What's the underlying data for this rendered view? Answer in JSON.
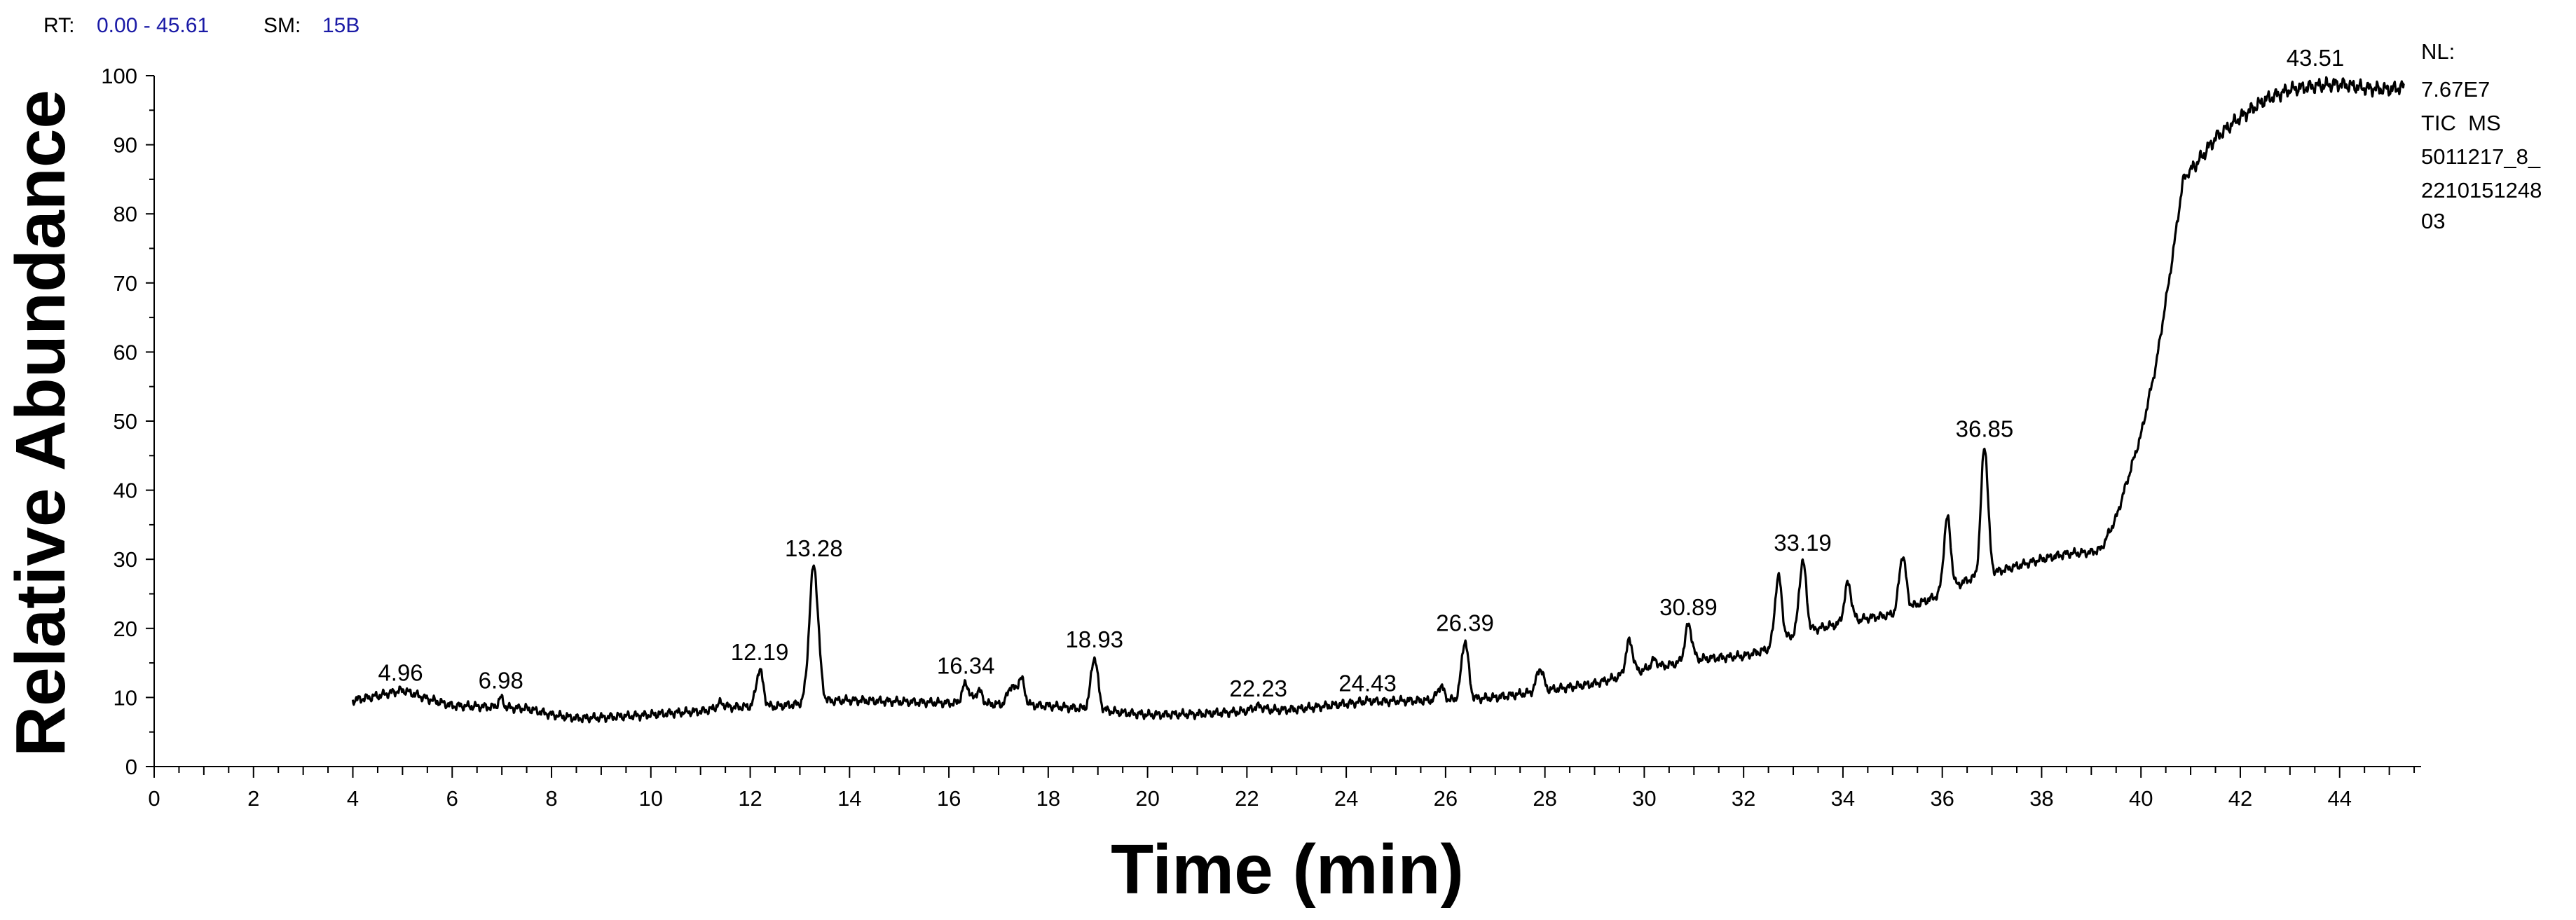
{
  "header": {
    "rt_key": "RT:",
    "rt_value": "0.00 - 45.61",
    "sm_key": "SM:",
    "sm_value": "15B"
  },
  "side_notes": [
    "NL:",
    "7.67E7",
    "TIC  MS",
    "5011217_8_",
    "2210151248",
    "03"
  ],
  "colors": {
    "trace": "#000000",
    "header_value": "#1a1aa6"
  },
  "chart_data": {
    "type": "line",
    "xlabel": "Time (min)",
    "ylabel": "Relative Abundance",
    "xlim": [
      0,
      45.61
    ],
    "ylim": [
      0,
      100
    ],
    "x_ticks": [
      0,
      2,
      4,
      6,
      8,
      10,
      12,
      14,
      16,
      18,
      20,
      22,
      24,
      26,
      28,
      30,
      32,
      34,
      36,
      38,
      40,
      42,
      44
    ],
    "y_ticks": [
      0,
      10,
      20,
      30,
      40,
      50,
      60,
      70,
      80,
      90,
      100
    ],
    "grid": false,
    "baseline": [
      [
        4.0,
        9.6
      ],
      [
        4.5,
        10.2
      ],
      [
        5.0,
        11.0
      ],
      [
        5.5,
        9.8
      ],
      [
        6.0,
        8.8
      ],
      [
        6.5,
        8.7
      ],
      [
        7.5,
        8.4
      ],
      [
        8.0,
        7.5
      ],
      [
        8.5,
        7.0
      ],
      [
        9.0,
        7.1
      ],
      [
        9.5,
        7.3
      ],
      [
        10.0,
        7.5
      ],
      [
        10.5,
        7.8
      ],
      [
        11.0,
        8.0
      ],
      [
        11.5,
        8.6
      ],
      [
        12.5,
        8.7
      ],
      [
        13.6,
        9.5
      ],
      [
        14.0,
        9.6
      ],
      [
        14.5,
        9.5
      ],
      [
        15.0,
        9.4
      ],
      [
        16.0,
        9.2
      ],
      [
        17.0,
        9.0
      ],
      [
        18.0,
        8.8
      ],
      [
        18.5,
        8.5
      ],
      [
        19.0,
        8.3
      ],
      [
        19.5,
        7.8
      ],
      [
        20.0,
        7.5
      ],
      [
        21.0,
        7.6
      ],
      [
        22.0,
        8.0
      ],
      [
        23.0,
        8.3
      ],
      [
        24.0,
        9.1
      ],
      [
        25.0,
        9.5
      ],
      [
        26.0,
        9.6
      ],
      [
        27.0,
        10.0
      ],
      [
        28.0,
        11.0
      ],
      [
        29.0,
        12.0
      ],
      [
        29.5,
        13.0
      ],
      [
        30.0,
        14.0
      ],
      [
        30.5,
        14.7
      ],
      [
        31.0,
        15.5
      ],
      [
        32.0,
        16.0
      ],
      [
        32.5,
        17.0
      ],
      [
        33.0,
        19.0
      ],
      [
        33.5,
        20.0
      ],
      [
        34.5,
        21.5
      ],
      [
        35.0,
        22.0
      ],
      [
        35.5,
        23.5
      ],
      [
        36.0,
        25.0
      ],
      [
        36.5,
        27.0
      ],
      [
        37.0,
        28.0
      ],
      [
        38.0,
        30.0
      ],
      [
        38.5,
        30.8
      ],
      [
        39.0,
        31.0
      ],
      [
        39.2,
        31.5
      ],
      [
        39.5,
        36.0
      ],
      [
        40.0,
        48.0
      ],
      [
        40.3,
        58.0
      ],
      [
        40.6,
        72.0
      ],
      [
        40.85,
        85.0
      ],
      [
        41.2,
        88.0
      ],
      [
        41.5,
        91.0
      ],
      [
        42.0,
        94.0
      ],
      [
        42.5,
        96.5
      ],
      [
        43.0,
        98.0
      ],
      [
        43.5,
        98.5
      ],
      [
        44.0,
        98.8
      ],
      [
        44.5,
        98.2
      ],
      [
        45.0,
        98.0
      ],
      [
        45.3,
        98.4
      ]
    ],
    "peaks": [
      {
        "x": 4.96,
        "y": 11.0,
        "labeled": true
      },
      {
        "x": 6.98,
        "y": 9.9,
        "labeled": true
      },
      {
        "x": 11.4,
        "y": 9.2,
        "labeled": false
      },
      {
        "x": 12.19,
        "y": 14.0,
        "labeled": true
      },
      {
        "x": 13.28,
        "y": 29.0,
        "labeled": true
      },
      {
        "x": 16.34,
        "y": 12.0,
        "labeled": true
      },
      {
        "x": 16.6,
        "y": 11.0,
        "labeled": false
      },
      {
        "x": 17.25,
        "y": 11.6,
        "labeled": false
      },
      {
        "x": 17.45,
        "y": 12.8,
        "labeled": false
      },
      {
        "x": 18.93,
        "y": 15.8,
        "labeled": true
      },
      {
        "x": 22.23,
        "y": 8.7,
        "labeled": true
      },
      {
        "x": 24.43,
        "y": 9.5,
        "labeled": true
      },
      {
        "x": 25.9,
        "y": 11.6,
        "labeled": false
      },
      {
        "x": 26.39,
        "y": 18.2,
        "labeled": true
      },
      {
        "x": 27.9,
        "y": 14.2,
        "labeled": false
      },
      {
        "x": 29.7,
        "y": 18.2,
        "labeled": false
      },
      {
        "x": 30.2,
        "y": 15.4,
        "labeled": false
      },
      {
        "x": 30.89,
        "y": 20.5,
        "labeled": true
      },
      {
        "x": 32.7,
        "y": 27.5,
        "labeled": false
      },
      {
        "x": 33.19,
        "y": 29.8,
        "labeled": true
      },
      {
        "x": 34.1,
        "y": 26.5,
        "labeled": false
      },
      {
        "x": 35.2,
        "y": 30.5,
        "labeled": false
      },
      {
        "x": 36.1,
        "y": 36.0,
        "labeled": false
      },
      {
        "x": 36.85,
        "y": 46.3,
        "labeled": true
      },
      {
        "x": 43.51,
        "y": 100.0,
        "labeled": true
      }
    ]
  }
}
